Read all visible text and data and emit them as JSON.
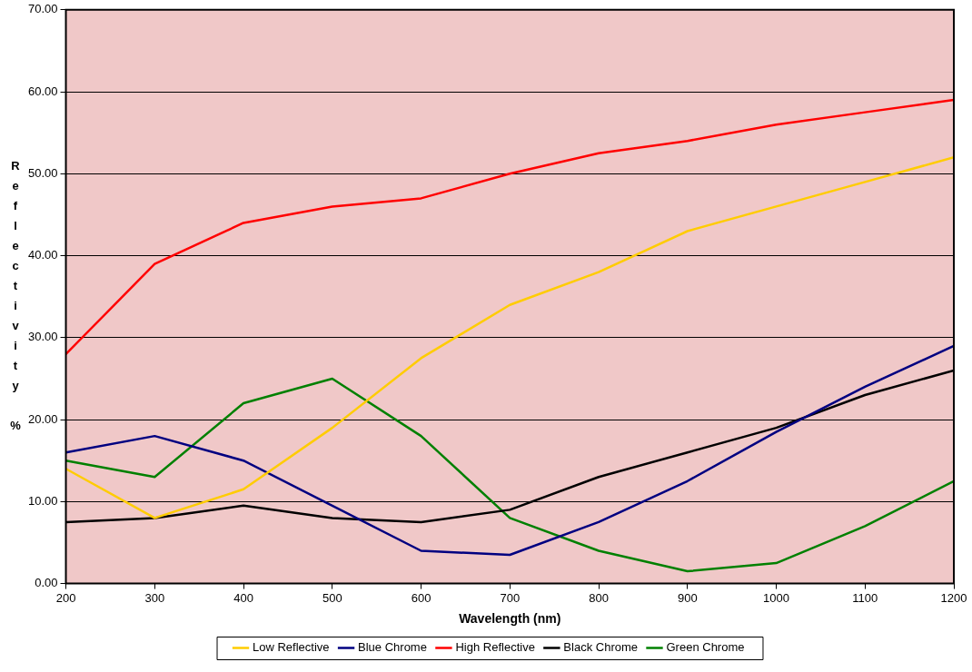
{
  "chart_data": {
    "type": "line",
    "xlabel": "Wavelength (nm)",
    "ylabel": "Reflectivity %",
    "x": [
      200,
      300,
      400,
      500,
      600,
      700,
      800,
      900,
      1000,
      1100,
      1200
    ],
    "series": [
      {
        "name": "Low Reflective",
        "color": "#ffcc00",
        "values": [
          14,
          8,
          11.5,
          19,
          27.5,
          34,
          38,
          43,
          46,
          49,
          52
        ]
      },
      {
        "name": "Blue Chrome",
        "color": "#000080",
        "values": [
          16,
          18,
          15,
          9.5,
          4,
          3.5,
          7.5,
          12.5,
          18.5,
          24,
          29
        ]
      },
      {
        "name": "High Reflective",
        "color": "#ff0000",
        "values": [
          28,
          39,
          44,
          46,
          47,
          50,
          52.5,
          54,
          56,
          57.5,
          59
        ]
      },
      {
        "name": "Black Chrome",
        "color": "#000000",
        "values": [
          7.5,
          8,
          9.5,
          8,
          7.5,
          9,
          13,
          16,
          19,
          23,
          26
        ]
      },
      {
        "name": "Green Chrome",
        "color": "#008000",
        "values": [
          15,
          13,
          22,
          25,
          18,
          8,
          4,
          1.5,
          2.5,
          7,
          12.5
        ]
      }
    ],
    "xlim": [
      200,
      1200
    ],
    "xticks": [
      200,
      300,
      400,
      500,
      600,
      700,
      800,
      900,
      1000,
      1100,
      1200
    ],
    "ylim": [
      0,
      70
    ],
    "yticks": [
      {
        "value": 0,
        "label": "0.00"
      },
      {
        "value": 10,
        "label": "10.00"
      },
      {
        "value": 20,
        "label": "20.00"
      },
      {
        "value": 30,
        "label": "30.00"
      },
      {
        "value": 40,
        "label": "40.00"
      },
      {
        "value": 50,
        "label": "50.00"
      },
      {
        "value": 60,
        "label": "60.00"
      },
      {
        "value": 70,
        "label": "70.00"
      }
    ],
    "grid": "y",
    "legend": "bottom",
    "marker": "none",
    "line_style": "solid"
  }
}
